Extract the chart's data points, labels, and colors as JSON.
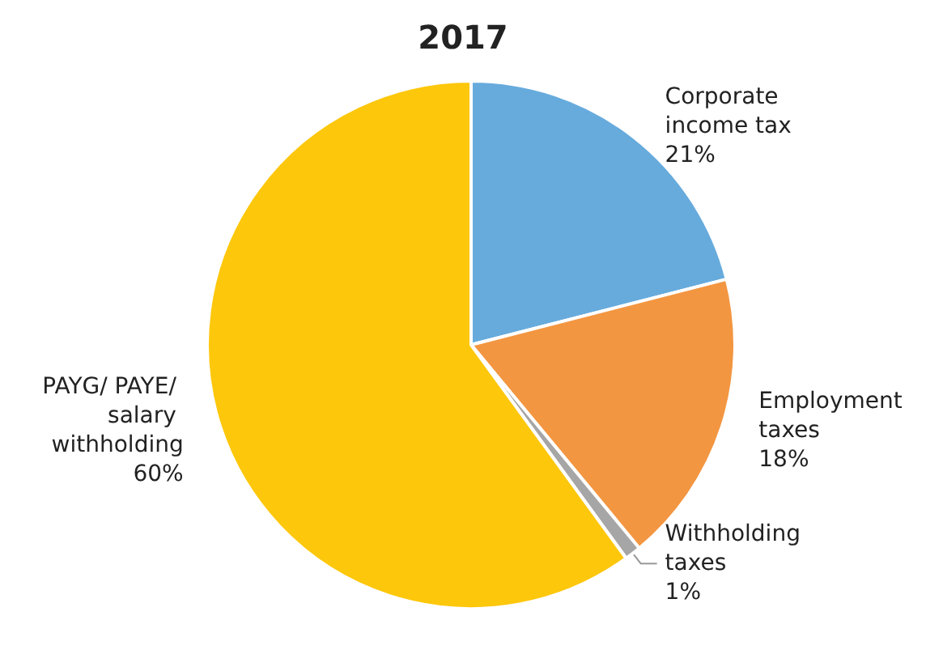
{
  "chart_data": {
    "type": "pie",
    "title": "2017",
    "categories": [
      "Corporate income tax",
      "Employment taxes",
      "Withholding taxes",
      "PAYG/ PAYE/ salary withholding"
    ],
    "values": [
      21,
      18,
      1,
      60
    ],
    "colors": [
      "#67abdd",
      "#f39641",
      "#a6a6a6",
      "#fdc70c"
    ],
    "value_labels": [
      "21%",
      "18%",
      "1%",
      "60%"
    ]
  }
}
